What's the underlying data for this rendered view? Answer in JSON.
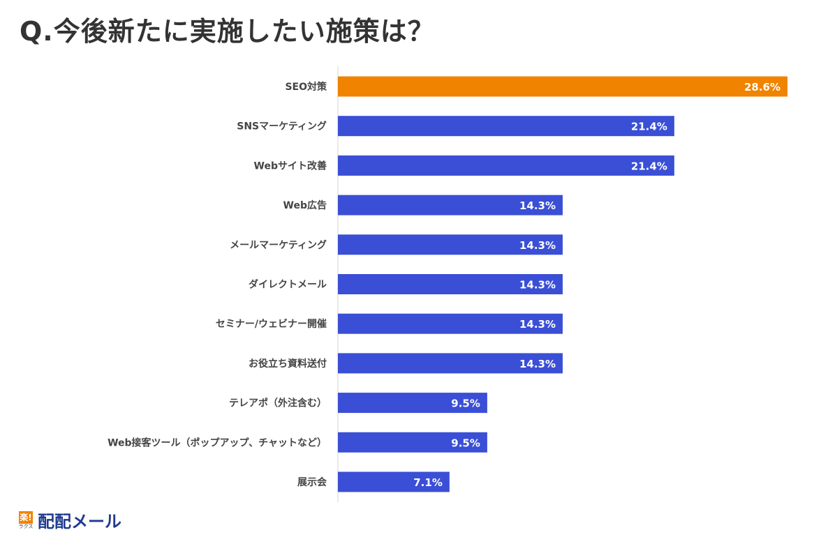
{
  "chart_data": {
    "type": "bar",
    "orientation": "horizontal",
    "title": "Q.今後新たに実施したい施策は？",
    "categories": [
      "SEO対策",
      "SNSマーケティング",
      "Webサイト改善",
      "Web広告",
      "メールマーケティング",
      "ダイレクトメール",
      "セミナー/ウェビナー開催",
      "お役立ち資料送付",
      "テレアポ（外注含む）",
      "Web接客ツール（ポップアップ、チャットなど）",
      "展示会"
    ],
    "values": [
      28.6,
      21.4,
      21.4,
      14.3,
      14.3,
      14.3,
      14.3,
      14.3,
      9.5,
      9.5,
      7.1
    ],
    "value_labels": [
      "28.6%",
      "21.4%",
      "21.4%",
      "14.3%",
      "14.3%",
      "14.3%",
      "14.3%",
      "14.3%",
      "9.5%",
      "9.5%",
      "7.1%"
    ],
    "xlim": [
      0,
      28.6
    ],
    "grid": false,
    "colors": {
      "highlight": "#F08300",
      "default": "#3A4FD6"
    }
  },
  "logo": {
    "mark": "楽!",
    "sub": "ラクス",
    "name": "配配メール"
  }
}
